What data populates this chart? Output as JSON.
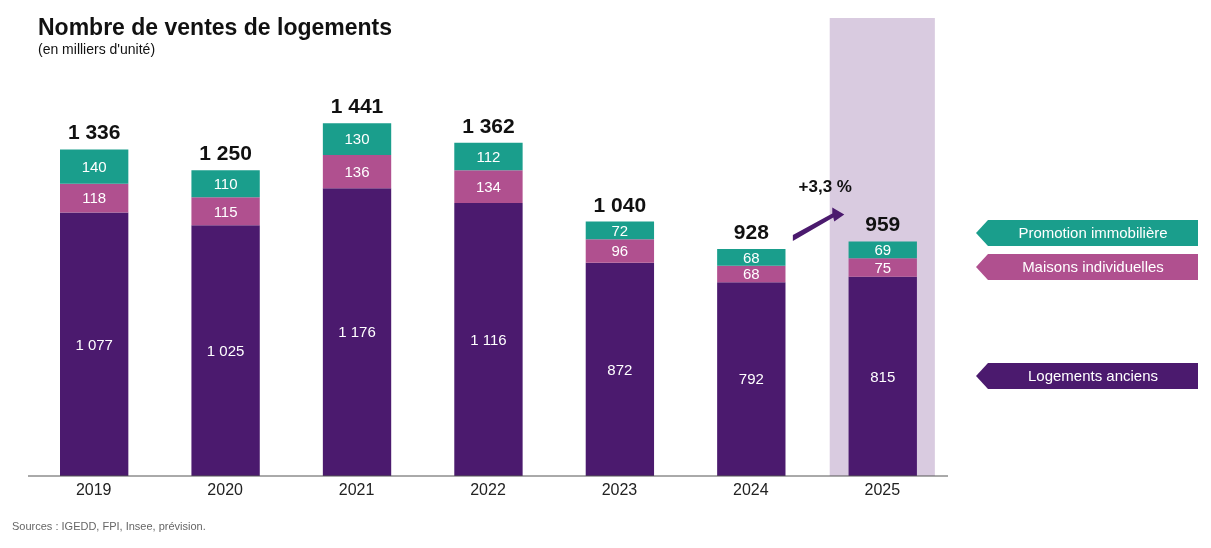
{
  "chart_data": {
    "type": "bar",
    "title": "Nombre de ventes de logements",
    "subtitle": "(en milliers d'unité)",
    "categories": [
      "2019",
      "2020",
      "2021",
      "2022",
      "2023",
      "2024",
      "2025"
    ],
    "stacked": true,
    "legend": "right",
    "series": [
      {
        "name": "Logements anciens",
        "color": "#4b1a6e",
        "values": [
          1077,
          1025,
          1176,
          1116,
          872,
          792,
          815
        ],
        "value_labels": [
          "1 077",
          "1 025",
          "1 176",
          "1 116",
          "872",
          "792",
          "815"
        ]
      },
      {
        "name": "Maisons individuelles",
        "color": "#b0508f",
        "values": [
          118,
          115,
          136,
          134,
          96,
          68,
          75
        ],
        "value_labels": [
          "118",
          "115",
          "136",
          "134",
          "96",
          "68",
          "75"
        ]
      },
      {
        "name": "Promotion immobilière",
        "color": "#1a9e8c",
        "values": [
          140,
          110,
          130,
          112,
          72,
          68,
          69
        ],
        "value_labels": [
          "140",
          "110",
          "130",
          "112",
          "72",
          "68",
          "69"
        ]
      }
    ],
    "totals": [
      "1 336",
      "1 250",
      "1 441",
      "1 362",
      "1 040",
      "928",
      "959"
    ],
    "bands": [
      {
        "axis": "x",
        "from": "2025",
        "to": "2025",
        "color": "#d9cbe0"
      }
    ],
    "annotations": [
      "+3,3 %",
      "Sources : IGEDD, FPI, Insee, prévision."
    ]
  }
}
